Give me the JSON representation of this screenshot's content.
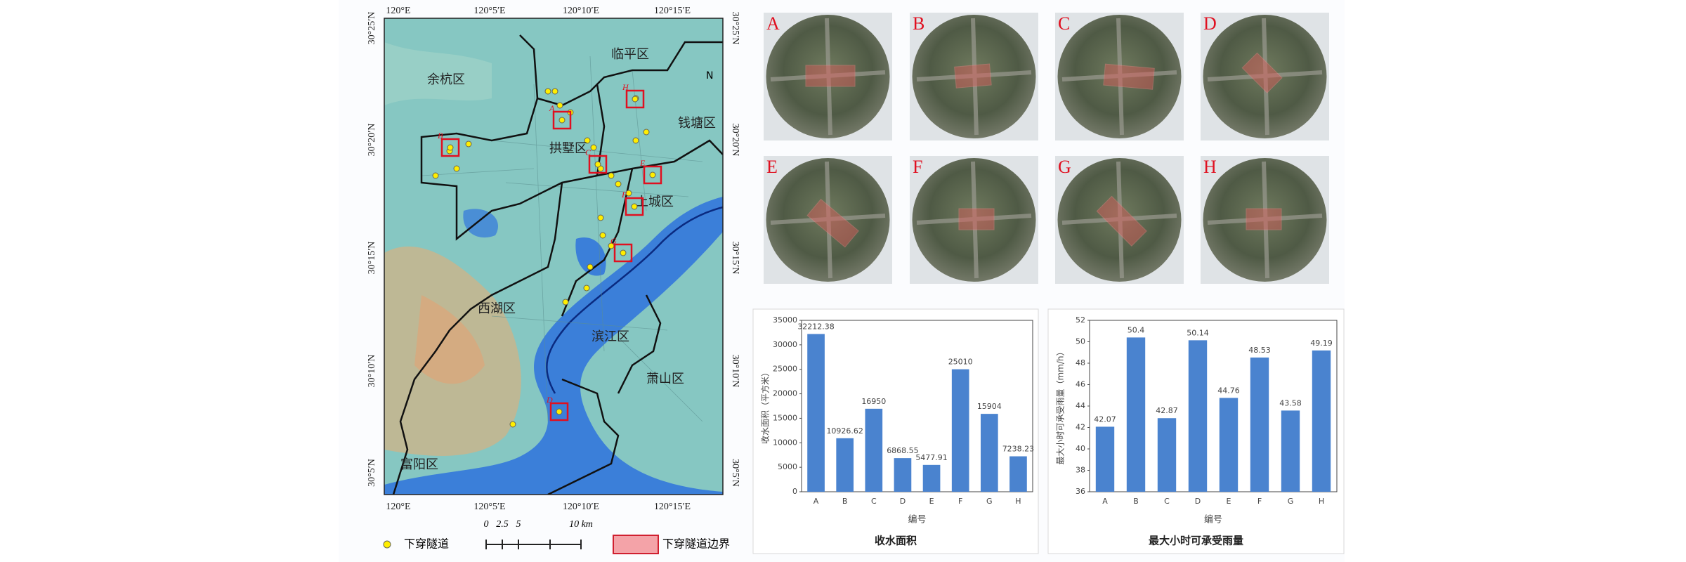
{
  "map": {
    "lon_labels": [
      "120°E",
      "120°5′E",
      "120°10′E",
      "120°15′E"
    ],
    "lat_labels": [
      "30°25′N",
      "30°20′N",
      "30°15′N",
      "30°10′N",
      "30°5′N"
    ],
    "districts": [
      "余杭区",
      "临平区",
      "钱塘区",
      "拱墅区",
      "上城区",
      "西湖区",
      "滨江区",
      "萧山区",
      "富阳区"
    ],
    "north": "N",
    "sites": [
      "A",
      "B",
      "C",
      "D",
      "E",
      "F",
      "G",
      "H"
    ],
    "scale": [
      "0",
      "2.5",
      "5",
      "10 km"
    ],
    "legend": {
      "points": "下穿隧道",
      "boundary": "下穿隧道边界"
    }
  },
  "images": {
    "labels": [
      "A",
      "B",
      "C",
      "D",
      "E",
      "F",
      "G",
      "H"
    ]
  },
  "chart_data": [
    {
      "type": "bar",
      "title": "收水面积",
      "x_label": "编号",
      "y_label": "收水面积（平方米）",
      "categories": [
        "A",
        "B",
        "C",
        "D",
        "E",
        "F",
        "G",
        "H"
      ],
      "values": [
        32212.38,
        10926.62,
        16950,
        6868.55,
        5477.91,
        25010,
        15904,
        7238.23
      ],
      "color": "#4a83cf",
      "ylim": [
        0,
        35000
      ],
      "yticks": [
        0,
        5000,
        10000,
        15000,
        20000,
        25000,
        30000,
        35000
      ],
      "grid": false
    },
    {
      "type": "bar",
      "title": "最大小时可承受雨量",
      "x_label": "编号",
      "y_label": "最大小时可承受雨量（mm/h）",
      "categories": [
        "A",
        "B",
        "C",
        "D",
        "E",
        "F",
        "G",
        "H"
      ],
      "values": [
        42.07,
        50.4,
        42.87,
        50.14,
        44.76,
        48.53,
        43.58,
        49.19
      ],
      "color": "#4a83cf",
      "ylim": [
        36,
        52
      ],
      "yticks": [
        36,
        38,
        40,
        42,
        44,
        46,
        48,
        50,
        52
      ],
      "grid": false
    }
  ]
}
